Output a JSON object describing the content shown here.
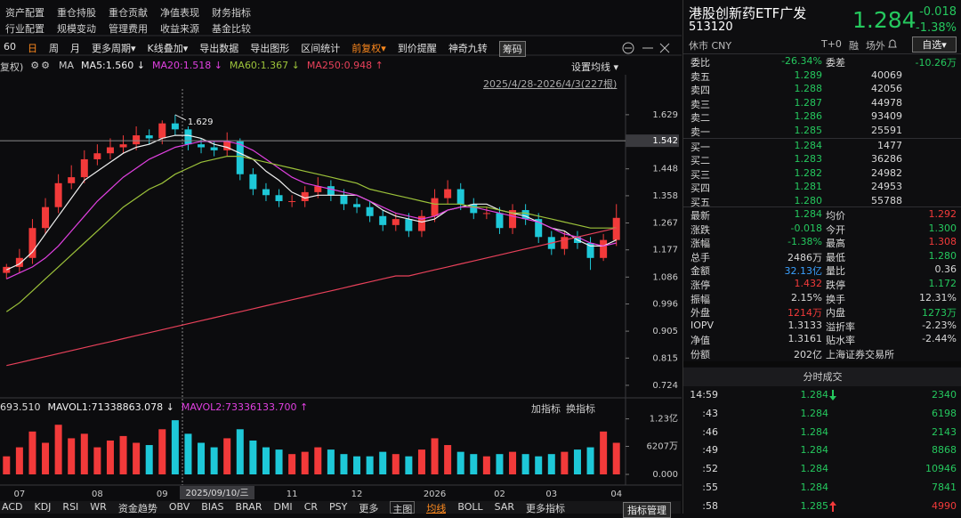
{
  "menu": {
    "row1": [
      "资产配置",
      "重仓持股",
      "重仓贡献",
      "净值表现",
      "财务指标"
    ],
    "row2": [
      "行业配置",
      "规模变动",
      "管理费用",
      "收益来源",
      "基金比较"
    ]
  },
  "toolbar": {
    "items": [
      "60",
      "日",
      "周",
      "月",
      "更多周期▾",
      "K线叠加▾",
      "导出数据",
      "导出图形",
      "区间统计",
      "前复权▾",
      "到价提醒",
      "神奇九转",
      "筹码"
    ],
    "highlight": [
      1,
      9
    ]
  },
  "chart_data": [
    {
      "type": "candlestick",
      "prefix": "复权)",
      "ma_title": "MA",
      "settings": "设置均线 ▾",
      "range": "2025/4/28-2026/4/3(227根)",
      "categories": [
        null,
        "07",
        null,
        null,
        null,
        null,
        null,
        "08",
        null,
        null,
        null,
        null,
        "09",
        null,
        null,
        null,
        null,
        null,
        null,
        null,
        null,
        null,
        "11",
        null,
        null,
        null,
        null,
        "12",
        null,
        null,
        null,
        null,
        null,
        "2026",
        null,
        null,
        null,
        null,
        "02",
        null,
        null,
        null,
        "03",
        null,
        null,
        null,
        null,
        "04"
      ],
      "open": [
        1.1,
        1.12,
        1.15,
        1.25,
        1.32,
        1.4,
        1.42,
        1.48,
        1.5,
        1.52,
        1.53,
        1.56,
        1.55,
        1.6,
        1.58,
        1.53,
        1.52,
        1.51,
        1.54,
        1.43,
        1.38,
        1.36,
        1.34,
        1.34,
        1.37,
        1.39,
        1.36,
        1.33,
        1.32,
        1.29,
        1.26,
        1.28,
        1.24,
        1.29,
        1.35,
        1.38,
        1.33,
        1.3,
        1.3,
        1.25,
        1.31,
        1.28,
        1.22,
        1.18,
        1.22,
        1.2,
        1.15,
        1.21
      ],
      "high": [
        1.13,
        1.18,
        1.28,
        1.35,
        1.43,
        1.46,
        1.51,
        1.53,
        1.55,
        1.56,
        1.59,
        1.58,
        1.61,
        1.629,
        1.59,
        1.55,
        1.54,
        1.57,
        1.55,
        1.45,
        1.4,
        1.38,
        1.36,
        1.39,
        1.42,
        1.41,
        1.38,
        1.35,
        1.34,
        1.31,
        1.3,
        1.3,
        1.31,
        1.38,
        1.41,
        1.4,
        1.35,
        1.32,
        1.32,
        1.33,
        1.33,
        1.3,
        1.24,
        1.24,
        1.24,
        1.22,
        1.23,
        1.33
      ],
      "low": [
        1.08,
        1.1,
        1.13,
        1.23,
        1.3,
        1.38,
        1.4,
        1.46,
        1.48,
        1.5,
        1.51,
        1.53,
        1.53,
        1.56,
        1.51,
        1.5,
        1.49,
        1.49,
        1.41,
        1.36,
        1.34,
        1.32,
        1.32,
        1.32,
        1.35,
        1.34,
        1.31,
        1.3,
        1.27,
        1.24,
        1.24,
        1.22,
        1.22,
        1.27,
        1.33,
        1.31,
        1.28,
        1.28,
        1.23,
        1.23,
        1.26,
        1.2,
        1.16,
        1.16,
        1.18,
        1.11,
        1.14,
        1.19
      ],
      "close": [
        1.12,
        1.15,
        1.25,
        1.32,
        1.4,
        1.42,
        1.48,
        1.5,
        1.52,
        1.53,
        1.56,
        1.55,
        1.6,
        1.58,
        1.53,
        1.52,
        1.51,
        1.54,
        1.43,
        1.38,
        1.36,
        1.34,
        1.34,
        1.37,
        1.39,
        1.36,
        1.33,
        1.32,
        1.29,
        1.26,
        1.28,
        1.24,
        1.29,
        1.35,
        1.38,
        1.33,
        1.3,
        1.3,
        1.25,
        1.31,
        1.28,
        1.22,
        1.18,
        1.22,
        1.2,
        1.15,
        1.21,
        1.284
      ],
      "up_color": "#f23a3a",
      "down_color": "#1ec8d8",
      "series": [
        {
          "name": "MA5:1.560 ↓",
          "color": "#f0f0f0",
          "values": [
            1.11,
            1.13,
            1.17,
            1.23,
            1.29,
            1.35,
            1.41,
            1.44,
            1.47,
            1.5,
            1.52,
            1.53,
            1.55,
            1.56,
            1.56,
            1.55,
            1.53,
            1.52,
            1.5,
            1.48,
            1.44,
            1.41,
            1.37,
            1.35,
            1.36,
            1.36,
            1.36,
            1.36,
            1.34,
            1.31,
            1.29,
            1.28,
            1.27,
            1.28,
            1.31,
            1.32,
            1.33,
            1.33,
            1.31,
            1.3,
            1.29,
            1.27,
            1.25,
            1.24,
            1.21,
            1.19,
            1.19,
            1.21
          ]
        },
        {
          "name": "MA20:1.518 ↓",
          "color": "#e040e0",
          "values": [
            1.08,
            1.1,
            1.12,
            1.15,
            1.19,
            1.24,
            1.29,
            1.34,
            1.38,
            1.42,
            1.45,
            1.48,
            1.5,
            1.52,
            1.53,
            1.54,
            1.54,
            1.54,
            1.53,
            1.51,
            1.48,
            1.45,
            1.42,
            1.4,
            1.39,
            1.38,
            1.37,
            1.36,
            1.34,
            1.32,
            1.3,
            1.29,
            1.28,
            1.29,
            1.31,
            1.32,
            1.32,
            1.31,
            1.3,
            1.29,
            1.28,
            1.27,
            1.25,
            1.23,
            1.22,
            1.2,
            1.19,
            1.2
          ]
        },
        {
          "name": "MA60:1.367 ↓",
          "color": "#9cc23a",
          "values": [
            0.97,
            1.0,
            1.04,
            1.08,
            1.12,
            1.16,
            1.2,
            1.24,
            1.28,
            1.32,
            1.35,
            1.38,
            1.4,
            1.43,
            1.45,
            1.47,
            1.48,
            1.49,
            1.49,
            1.48,
            1.47,
            1.46,
            1.45,
            1.44,
            1.43,
            1.42,
            1.41,
            1.4,
            1.38,
            1.37,
            1.36,
            1.35,
            1.34,
            1.33,
            1.33,
            1.33,
            1.32,
            1.32,
            1.31,
            1.3,
            1.3,
            1.29,
            1.28,
            1.27,
            1.26,
            1.25,
            1.25,
            1.25
          ]
        },
        {
          "name": "MA250:0.948 ↑",
          "color": "#e8415a",
          "values": [
            0.79,
            0.8,
            0.81,
            0.82,
            0.83,
            0.84,
            0.85,
            0.86,
            0.87,
            0.88,
            0.89,
            0.9,
            0.91,
            0.92,
            0.93,
            0.94,
            0.95,
            0.96,
            0.97,
            0.98,
            0.99,
            1.0,
            1.01,
            1.02,
            1.03,
            1.04,
            1.05,
            1.06,
            1.07,
            1.08,
            1.09,
            1.09,
            1.1,
            1.11,
            1.12,
            1.13,
            1.14,
            1.15,
            1.16,
            1.17,
            1.18,
            1.19,
            1.2,
            1.21,
            1.22,
            1.23,
            1.24,
            1.25
          ]
        }
      ],
      "ylim": [
        0.688,
        1.715
      ],
      "yticks": [
        1.629,
        1.448,
        1.358,
        1.267,
        1.177,
        1.086,
        0.996,
        0.905,
        0.815,
        0.724
      ],
      "high_annotation": 1.629,
      "crosshair": {
        "value": 1.542,
        "date": "2025/09/10/三"
      }
    },
    {
      "type": "bar",
      "label": "693.510",
      "legend": [
        {
          "name": "MAVOL1:71338863.078 ↓",
          "color": "#f0f0f0"
        },
        {
          "name": "MAVOL2:73336133.700 ↑",
          "color": "#e040e0"
        }
      ],
      "buttons": [
        "加指标",
        "换指标"
      ],
      "values": [
        40000000,
        60000000,
        95000000,
        70000000,
        110000000,
        80000000,
        90000000,
        60000000,
        75000000,
        85000000,
        70000000,
        65000000,
        100000000,
        120000000,
        90000000,
        70000000,
        60000000,
        80000000,
        100000000,
        75000000,
        60000000,
        55000000,
        45000000,
        50000000,
        60000000,
        55000000,
        45000000,
        40000000,
        40000000,
        50000000,
        45000000,
        40000000,
        55000000,
        80000000,
        65000000,
        50000000,
        45000000,
        40000000,
        45000000,
        50000000,
        45000000,
        40000000,
        45000000,
        50000000,
        55000000,
        60000000,
        95000000,
        70000000
      ],
      "ylim": [
        0,
        140000000
      ],
      "yticks": [
        {
          "value": 0,
          "label": "0.000"
        },
        {
          "value": 62070000,
          "label": "6207万"
        },
        {
          "value": 123000000,
          "label": "1.23亿"
        }
      ]
    }
  ],
  "quote": {
    "name": "港股创新药ETF广发",
    "code": "513120",
    "price": "1.284",
    "change": "-0.018",
    "pct": "-1.38%",
    "color": "#25c85e",
    "status": "休市 CNY",
    "tags": [
      "T+0",
      "融",
      "场外"
    ],
    "watch": "自选▾",
    "order_book": {
      "head": [
        "委比",
        "-26.34%",
        "委差",
        "-10.26万"
      ],
      "head_color": "#25c85e",
      "price_color": "#25c85e",
      "asks": [
        [
          "卖五",
          "1.289",
          "40069"
        ],
        [
          "卖四",
          "1.288",
          "42056"
        ],
        [
          "卖三",
          "1.287",
          "44978"
        ],
        [
          "卖二",
          "1.286",
          "93409"
        ],
        [
          "卖一",
          "1.285",
          "25591"
        ]
      ],
      "bids": [
        [
          "买一",
          "1.284",
          "1477"
        ],
        [
          "买二",
          "1.283",
          "36286"
        ],
        [
          "买三",
          "1.282",
          "24982"
        ],
        [
          "买四",
          "1.281",
          "24953"
        ],
        [
          "买五",
          "1.280",
          "55788"
        ]
      ]
    },
    "stats": [
      [
        "最新",
        "1.284",
        "#25c85e",
        "均价",
        "1.292",
        "#f23a3a"
      ],
      [
        "涨跌",
        "-0.018",
        "#25c85e",
        "今开",
        "1.300",
        "#25c85e"
      ],
      [
        "涨幅",
        "-1.38%",
        "#25c85e",
        "最高",
        "1.308",
        "#f23a3a"
      ],
      [
        "总手",
        "2486万",
        "#d8d8d8",
        "最低",
        "1.280",
        "#25c85e"
      ],
      [
        "金额",
        "32.13亿",
        "#3aa0ff",
        "量比",
        "0.36",
        "#d8d8d8"
      ],
      [
        "涨停",
        "1.432",
        "#f23a3a",
        "跌停",
        "1.172",
        "#25c85e"
      ],
      [
        "振幅",
        "2.15%",
        "#d8d8d8",
        "换手",
        "12.31%",
        "#d8d8d8"
      ],
      [
        "外盘",
        "1214万",
        "#f23a3a",
        "内盘",
        "1273万",
        "#25c85e"
      ],
      [
        "IOPV",
        "1.3133",
        "#d8d8d8",
        "溢折率",
        "-2.23%",
        "#d8d8d8"
      ],
      [
        "净值",
        "1.3161",
        "#d8d8d8",
        "贴水率",
        "-2.44%",
        "#d8d8d8"
      ],
      [
        "份额",
        "202亿",
        "#d8d8d8",
        "上海证券交易所"
      ]
    ],
    "trades": {
      "title": "分时成交",
      "price_color": "#25c85e",
      "rows": [
        {
          "time": "14:59",
          "price": "1.284",
          "volume": "2340",
          "arrow": "down",
          "color": "#25c85e"
        },
        {
          "time": ":43",
          "price": "1.284",
          "volume": "6198",
          "arrow": null,
          "color": "#25c85e"
        },
        {
          "time": ":46",
          "price": "1.284",
          "volume": "2143",
          "arrow": null,
          "color": "#25c85e"
        },
        {
          "time": ":49",
          "price": "1.284",
          "volume": "8868",
          "arrow": null,
          "color": "#25c85e"
        },
        {
          "time": ":52",
          "price": "1.284",
          "volume": "10946",
          "arrow": null,
          "color": "#25c85e"
        },
        {
          "time": ":55",
          "price": "1.284",
          "volume": "7841",
          "arrow": null,
          "color": "#25c85e"
        },
        {
          "time": ":58",
          "price": "1.285",
          "volume": "4990",
          "arrow": "up",
          "color": "#f23a3a"
        }
      ]
    }
  },
  "indicator_bar": {
    "items": [
      "ACD",
      "KDJ",
      "RSI",
      "WR",
      "资金趋势",
      "OBV",
      "BIAS",
      "BRAR",
      "DMI",
      "CR",
      "PSY",
      "更多",
      "主图",
      "均线",
      "BOLL",
      "SAR",
      "更多指标"
    ],
    "active_index": 13,
    "boxed_index": 12,
    "manage": "指标管理"
  }
}
